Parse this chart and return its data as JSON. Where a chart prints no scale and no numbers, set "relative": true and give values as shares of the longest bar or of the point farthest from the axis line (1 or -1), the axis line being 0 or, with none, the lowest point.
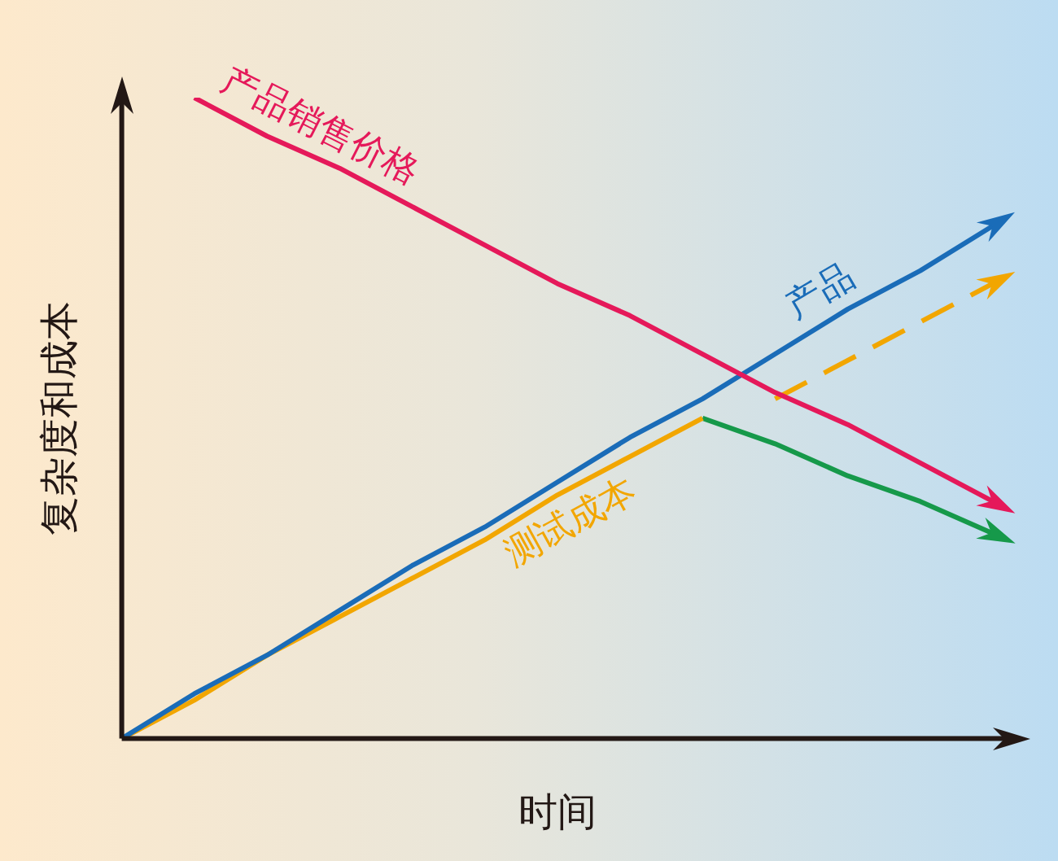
{
  "chart_data": {
    "type": "line",
    "xlabel": "时间",
    "ylabel": "复杂度和成本",
    "relative": true,
    "grid": false,
    "legend": false,
    "marker": "none",
    "categories": [
      null,
      null,
      null,
      null,
      null,
      null,
      null,
      null,
      null,
      null,
      null,
      null,
      null
    ],
    "series": [
      {
        "name": "产品销售价格",
        "color": "#e5195a",
        "values": [
          null,
          1,
          0.94,
          0.89,
          0.83,
          0.77,
          0.71,
          0.66,
          0.6,
          0.54,
          0.49,
          0.43,
          0.37
        ]
      },
      {
        "name": "产品",
        "color": "#1a6cb8",
        "values": [
          0,
          0.07,
          0.13,
          0.2,
          0.27,
          0.33,
          0.4,
          0.47,
          0.53,
          0.6,
          0.67,
          0.73,
          0.8
        ]
      },
      {
        "name": "测试成本",
        "color": "#f2a600",
        "values": [
          0,
          0.06,
          0.13,
          0.19,
          0.25,
          0.31,
          0.38,
          0.44,
          0.5,
          null,
          null,
          null,
          null
        ]
      },
      {
        "color": "#f2a600",
        "values": [
          null,
          null,
          null,
          null,
          null,
          null,
          null,
          null,
          null,
          0.53,
          0.59,
          0.65,
          0.71
        ],
        "line_style": "dashed"
      },
      {
        "color": "#16994a",
        "values": [
          null,
          null,
          null,
          null,
          null,
          null,
          null,
          null,
          0.5,
          0.46,
          0.41,
          0.37,
          0.32
        ]
      }
    ]
  }
}
